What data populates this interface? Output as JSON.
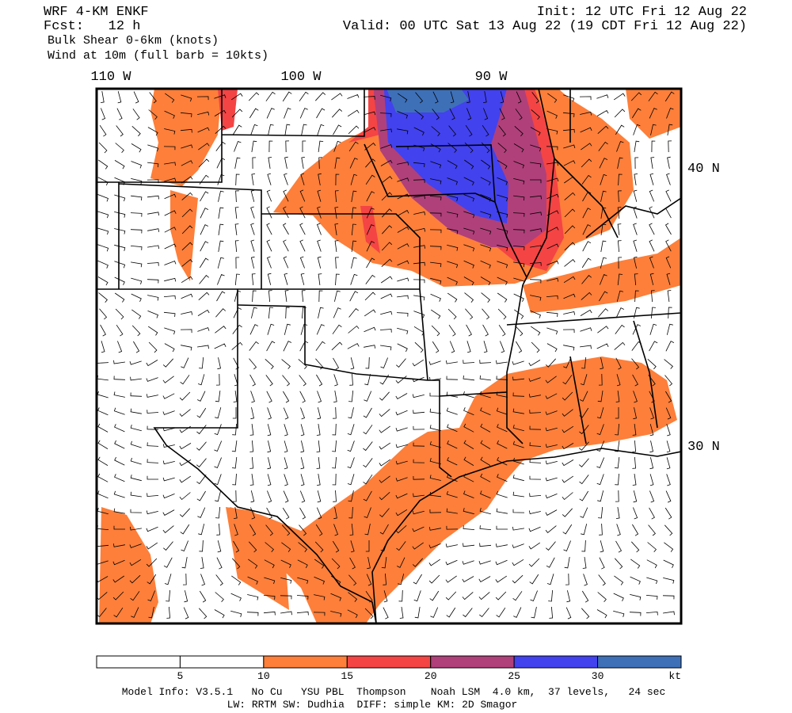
{
  "header": {
    "model": "WRF 4-KM ENKF",
    "forecast": "Fcst:   12 h",
    "field": "Bulk Shear 0-6km (knots)",
    "wind": "Wind at 10m (full barb = 10kts)",
    "init": "Init: 12 UTC Fri 12 Aug 22",
    "valid": "Valid: 00 UTC Sat 13 Aug 22 (19 CDT Fri 12 Aug 22)"
  },
  "map": {
    "lon_labels": [
      "110 W",
      "100 W",
      "90 W"
    ],
    "lat_labels": [
      "40 N",
      "30 N"
    ]
  },
  "colorbar": {
    "colors": [
      "#ffffff",
      "#ffffff",
      "#fd7f3a",
      "#f44444",
      "#b0407a",
      "#4242ee",
      "#3e70b8"
    ],
    "labels": [
      "5",
      "10",
      "15",
      "20",
      "25",
      "30",
      "kt"
    ]
  },
  "footer": {
    "line1": "Model Info: V3.5.1   No Cu   YSU PBL  Thompson    Noah LSM  4.0 km,  37 levels,   24 sec",
    "line2": "LW: RRTM SW: Dudhia  DIFF: simple KM: 2D Smagor"
  }
}
